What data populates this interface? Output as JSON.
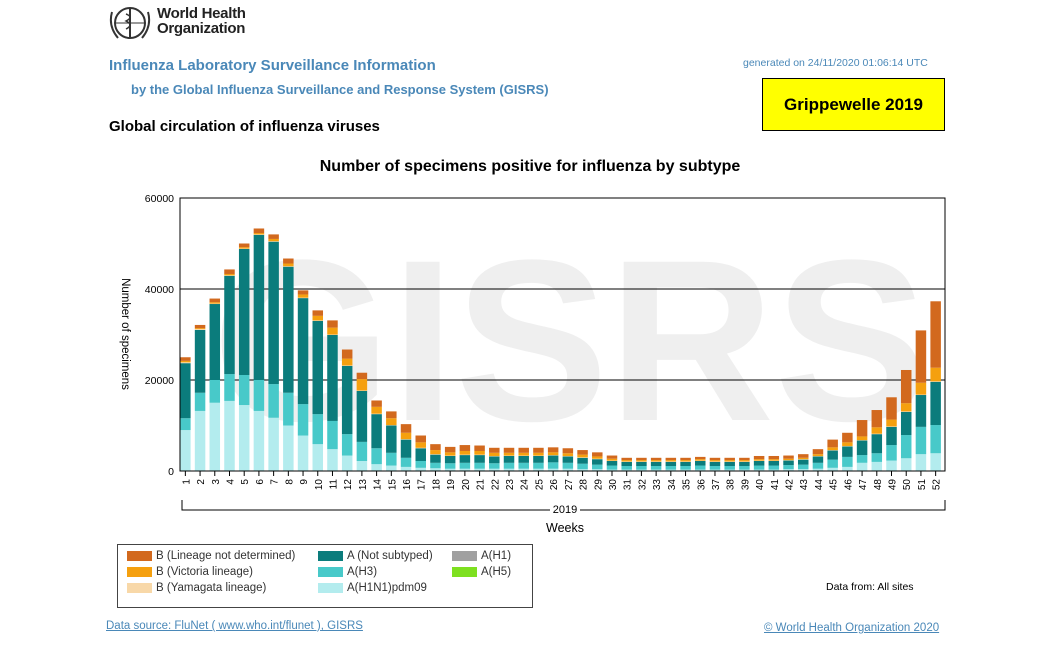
{
  "header": {
    "logo_text_line1": "World Health",
    "logo_text_line2": "Organization",
    "title": "Influenza Laboratory Surveillance Information",
    "subtitle": "by the Global Influenza Surveillance and Response System (GISRS)",
    "generated": "generated on 24/11/2020 01:06:14 UTC",
    "badge": "Grippewelle 2019",
    "section_title": "Global circulation of influenza viruses"
  },
  "footer": {
    "data_from": "Data from: All sites",
    "source_link": "Data source: FluNet ( www.who.int/flunet ), GISRS",
    "copyright": "© World Health Organization 2020"
  },
  "watermark": "GISRS",
  "chart_data": {
    "type": "bar",
    "stacked": true,
    "title": "Number of specimens positive for influenza by subtype",
    "xlabel": "Weeks",
    "xgroup_label": "2019",
    "ylabel": "Number of specimens",
    "ylim": [
      0,
      60000
    ],
    "yticks": [
      0,
      20000,
      40000,
      60000
    ],
    "grid": "horizontal",
    "legend_position": "bottom-left",
    "categories": [
      "1",
      "2",
      "3",
      "4",
      "5",
      "6",
      "7",
      "8",
      "9",
      "10",
      "11",
      "12",
      "13",
      "14",
      "15",
      "16",
      "17",
      "18",
      "19",
      "20",
      "21",
      "22",
      "23",
      "24",
      "25",
      "26",
      "27",
      "28",
      "29",
      "30",
      "31",
      "32",
      "33",
      "34",
      "35",
      "36",
      "37",
      "38",
      "39",
      "40",
      "41",
      "42",
      "43",
      "44",
      "45",
      "46",
      "47",
      "48",
      "49",
      "50",
      "51",
      "52"
    ],
    "series": [
      {
        "name": "A(H1N1)pdm09",
        "color": "#b3ecee",
        "values": [
          9000,
          13200,
          15000,
          15400,
          14500,
          13200,
          11700,
          10000,
          7800,
          5900,
          4800,
          3400,
          2200,
          1500,
          1200,
          900,
          700,
          600,
          500,
          500,
          500,
          500,
          500,
          500,
          500,
          500,
          500,
          400,
          400,
          300,
          300,
          300,
          300,
          300,
          300,
          300,
          300,
          300,
          300,
          300,
          300,
          400,
          400,
          500,
          700,
          900,
          1800,
          2000,
          2300,
          2800,
          3700,
          3900
        ]
      },
      {
        "name": "A(H3)",
        "color": "#48c9c9",
        "values": [
          2600,
          4000,
          5000,
          5900,
          6600,
          6800,
          7400,
          7200,
          6900,
          6600,
          6200,
          4700,
          4200,
          3500,
          2800,
          2000,
          1500,
          1200,
          1200,
          1300,
          1300,
          1200,
          1300,
          1300,
          1300,
          1400,
          1300,
          1200,
          1000,
          900,
          800,
          800,
          800,
          800,
          800,
          900,
          800,
          800,
          800,
          900,
          900,
          900,
          1000,
          1300,
          1800,
          2200,
          1700,
          1900,
          3400,
          5100,
          6000,
          6200
        ]
      },
      {
        "name": "A(H5)",
        "color": "#7ee020",
        "values": [
          0,
          0,
          0,
          0,
          0,
          0,
          0,
          0,
          0,
          0,
          0,
          0,
          0,
          0,
          0,
          0,
          0,
          0,
          0,
          0,
          0,
          0,
          0,
          0,
          0,
          0,
          0,
          0,
          0,
          0,
          0,
          0,
          0,
          0,
          0,
          0,
          0,
          0,
          0,
          0,
          0,
          0,
          0,
          0,
          0,
          0,
          0,
          0,
          0,
          0,
          0,
          0
        ]
      },
      {
        "name": "A(H1)",
        "color": "#a0a0a0",
        "values": [
          0,
          0,
          0,
          0,
          0,
          0,
          0,
          0,
          0,
          0,
          0,
          0,
          0,
          0,
          0,
          0,
          0,
          0,
          0,
          0,
          0,
          0,
          0,
          0,
          0,
          0,
          0,
          0,
          0,
          0,
          0,
          0,
          0,
          0,
          0,
          0,
          0,
          0,
          0,
          0,
          0,
          0,
          0,
          0,
          0,
          0,
          0,
          0,
          0,
          0,
          0,
          0
        ]
      },
      {
        "name": "A (Not subtyped)",
        "color": "#0b7c7c",
        "values": [
          12100,
          13800,
          16700,
          21600,
          27700,
          31900,
          31300,
          27700,
          23300,
          20500,
          18900,
          15000,
          11200,
          7500,
          6000,
          4000,
          2800,
          1800,
          1600,
          1700,
          1700,
          1500,
          1500,
          1500,
          1500,
          1500,
          1400,
          1300,
          1200,
          1000,
          900,
          900,
          900,
          900,
          900,
          1000,
          900,
          900,
          900,
          1000,
          1000,
          1000,
          1100,
          1400,
          2000,
          2300,
          3200,
          4200,
          4000,
          5100,
          7000,
          9500
        ]
      },
      {
        "name": "B (Yamagata lineage)",
        "color": "#f8d8a8",
        "values": [
          200,
          200,
          100,
          100,
          100,
          100,
          100,
          100,
          100,
          100,
          100,
          100,
          100,
          100,
          100,
          100,
          100,
          100,
          100,
          100,
          100,
          100,
          100,
          100,
          100,
          100,
          100,
          100,
          100,
          100,
          100,
          100,
          100,
          100,
          100,
          100,
          100,
          100,
          100,
          100,
          100,
          100,
          100,
          100,
          100,
          100,
          100,
          100,
          100,
          100,
          100,
          100
        ]
      },
      {
        "name": "B (Victoria lineage)",
        "color": "#f5a00f",
        "values": [
          300,
          200,
          300,
          300,
          300,
          300,
          500,
          600,
          700,
          1000,
          1500,
          1500,
          2500,
          1500,
          1500,
          1400,
          1200,
          900,
          700,
          800,
          800,
          700,
          600,
          600,
          600,
          600,
          600,
          600,
          500,
          400,
          300,
          300,
          300,
          300,
          300,
          300,
          300,
          300,
          300,
          300,
          300,
          300,
          300,
          400,
          600,
          800,
          800,
          1400,
          1500,
          1800,
          2600,
          3000
        ]
      },
      {
        "name": "B (Lineage not determined)",
        "color": "#d2691e",
        "values": [
          800,
          700,
          800,
          1000,
          800,
          1000,
          1000,
          1100,
          900,
          1200,
          1600,
          2000,
          1400,
          1400,
          1500,
          1900,
          1500,
          1300,
          1200,
          1300,
          1200,
          1100,
          1100,
          1100,
          1100,
          1100,
          1100,
          1000,
          900,
          700,
          500,
          500,
          500,
          500,
          500,
          500,
          500,
          500,
          500,
          700,
          700,
          700,
          800,
          1100,
          1700,
          2100,
          3600,
          3800,
          4900,
          7300,
          11500,
          14600
        ]
      }
    ],
    "legend_order": [
      "B (Lineage not determined)",
      "B (Victoria lineage)",
      "B (Yamagata lineage)",
      "A (Not subtyped)",
      "A(H3)",
      "A(H1N1)pdm09",
      "A(H1)",
      "A(H5)"
    ]
  }
}
